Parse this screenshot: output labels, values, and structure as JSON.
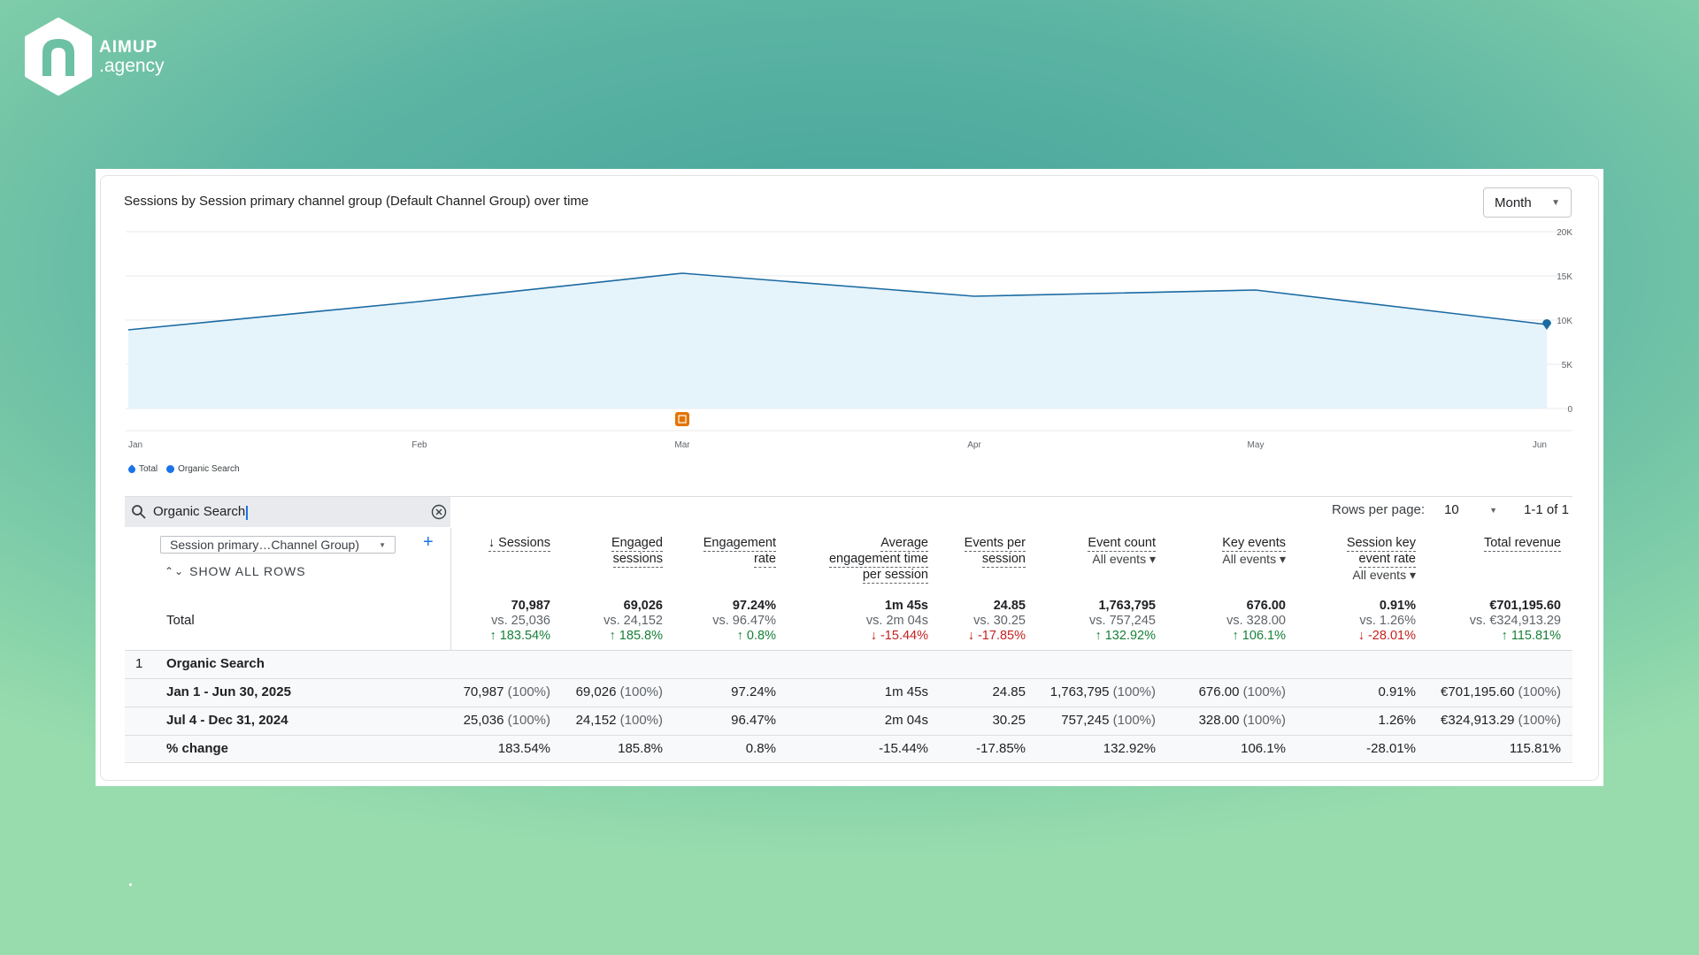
{
  "logo": {
    "line1": "AIMUP",
    "line2": ".agency"
  },
  "chart": {
    "title": "Sessions by Session primary channel group (Default Channel Group) over time"
  },
  "granularity": {
    "value": "Month"
  },
  "chart_data": {
    "type": "area",
    "x": [
      "Jan",
      "Feb",
      "Mar",
      "Apr",
      "May",
      "Jun"
    ],
    "series": [
      {
        "name": "Total",
        "values": [
          8900,
          12100,
          15300,
          12700,
          13400,
          9500
        ]
      }
    ],
    "y_ticks": [
      "20K",
      "15K",
      "10K",
      "5K",
      "0"
    ],
    "ylim": [
      0,
      20000
    ],
    "grid": true,
    "legend": [
      {
        "name": "Total"
      },
      {
        "name": "Organic Search"
      }
    ],
    "legend_position": "bottom-left",
    "colors": {
      "line": "#1a6aa2",
      "fill": "#e5f3fb",
      "annotation": "#e37400"
    }
  },
  "search": {
    "value": "Organic Search"
  },
  "pagination": {
    "rows_label": "Rows per page:",
    "rows_value": "10",
    "range": "1-1 of 1"
  },
  "dimension": {
    "select": "Session primary…Channel Group)",
    "show_all": "SHOW ALL ROWS"
  },
  "columns": [
    {
      "l1": "↓ Sessions",
      "l2": "",
      "l3": "",
      "sub": ""
    },
    {
      "l1": "Engaged",
      "l2": "sessions",
      "l3": "",
      "sub": ""
    },
    {
      "l1": "Engagement",
      "l2": "rate",
      "l3": "",
      "sub": ""
    },
    {
      "l1": "Average",
      "l2": "engagement time",
      "l3": "per session",
      "sub": ""
    },
    {
      "l1": "Events per",
      "l2": "session",
      "l3": "",
      "sub": ""
    },
    {
      "l1": "Event count",
      "l2": "",
      "l3": "",
      "sub": "All events ▾"
    },
    {
      "l1": "Key events",
      "l2": "",
      "l3": "",
      "sub": "All events ▾"
    },
    {
      "l1": "Session key",
      "l2": "event rate",
      "l3": "",
      "sub": "All events ▾"
    },
    {
      "l1": "Total revenue",
      "l2": "",
      "l3": "",
      "sub": ""
    }
  ],
  "total": {
    "label": "Total",
    "values": [
      {
        "v": "70,987",
        "vs": "vs. 25,036",
        "ch": "↑ 183.54%",
        "dir": "up"
      },
      {
        "v": "69,026",
        "vs": "vs. 24,152",
        "ch": "↑ 185.8%",
        "dir": "up"
      },
      {
        "v": "97.24%",
        "vs": "vs. 96.47%",
        "ch": "↑ 0.8%",
        "dir": "up"
      },
      {
        "v": "1m 45s",
        "vs": "vs. 2m 04s",
        "ch": "↓ -15.44%",
        "dir": "dn"
      },
      {
        "v": "24.85",
        "vs": "vs. 30.25",
        "ch": "↓ -17.85%",
        "dir": "dn"
      },
      {
        "v": "1,763,795",
        "vs": "vs. 757,245",
        "ch": "↑ 132.92%",
        "dir": "up"
      },
      {
        "v": "676.00",
        "vs": "vs. 328.00",
        "ch": "↑ 106.1%",
        "dir": "up"
      },
      {
        "v": "0.91%",
        "vs": "vs. 1.26%",
        "ch": "↓ -28.01%",
        "dir": "dn"
      },
      {
        "v": "€701,195.60",
        "vs": "vs. €324,913.29",
        "ch": "↑ 115.81%",
        "dir": "up"
      }
    ]
  },
  "group": {
    "num": "1",
    "label": "Organic Search"
  },
  "rows": [
    {
      "label": "Jan 1 - Jun 30, 2025",
      "cells": [
        {
          "v": "70,987",
          "p": "(100%)"
        },
        {
          "v": "69,026",
          "p": "(100%)"
        },
        {
          "v": "97.24%",
          "p": ""
        },
        {
          "v": "1m 45s",
          "p": ""
        },
        {
          "v": "24.85",
          "p": ""
        },
        {
          "v": "1,763,795",
          "p": "(100%)"
        },
        {
          "v": "676.00",
          "p": "(100%)"
        },
        {
          "v": "0.91%",
          "p": ""
        },
        {
          "v": "€701,195.60",
          "p": "(100%)"
        }
      ]
    },
    {
      "label": "Jul 4 - Dec 31, 2024",
      "cells": [
        {
          "v": "25,036",
          "p": "(100%)"
        },
        {
          "v": "24,152",
          "p": "(100%)"
        },
        {
          "v": "96.47%",
          "p": ""
        },
        {
          "v": "2m 04s",
          "p": ""
        },
        {
          "v": "30.25",
          "p": ""
        },
        {
          "v": "757,245",
          "p": "(100%)"
        },
        {
          "v": "328.00",
          "p": "(100%)"
        },
        {
          "v": "1.26%",
          "p": ""
        },
        {
          "v": "€324,913.29",
          "p": "(100%)"
        }
      ]
    },
    {
      "label": "% change",
      "cells": [
        {
          "v": "183.54%",
          "p": ""
        },
        {
          "v": "185.8%",
          "p": ""
        },
        {
          "v": "0.8%",
          "p": ""
        },
        {
          "v": "-15.44%",
          "p": ""
        },
        {
          "v": "-17.85%",
          "p": ""
        },
        {
          "v": "132.92%",
          "p": ""
        },
        {
          "v": "106.1%",
          "p": ""
        },
        {
          "v": "-28.01%",
          "p": ""
        },
        {
          "v": "115.81%",
          "p": ""
        }
      ]
    }
  ]
}
